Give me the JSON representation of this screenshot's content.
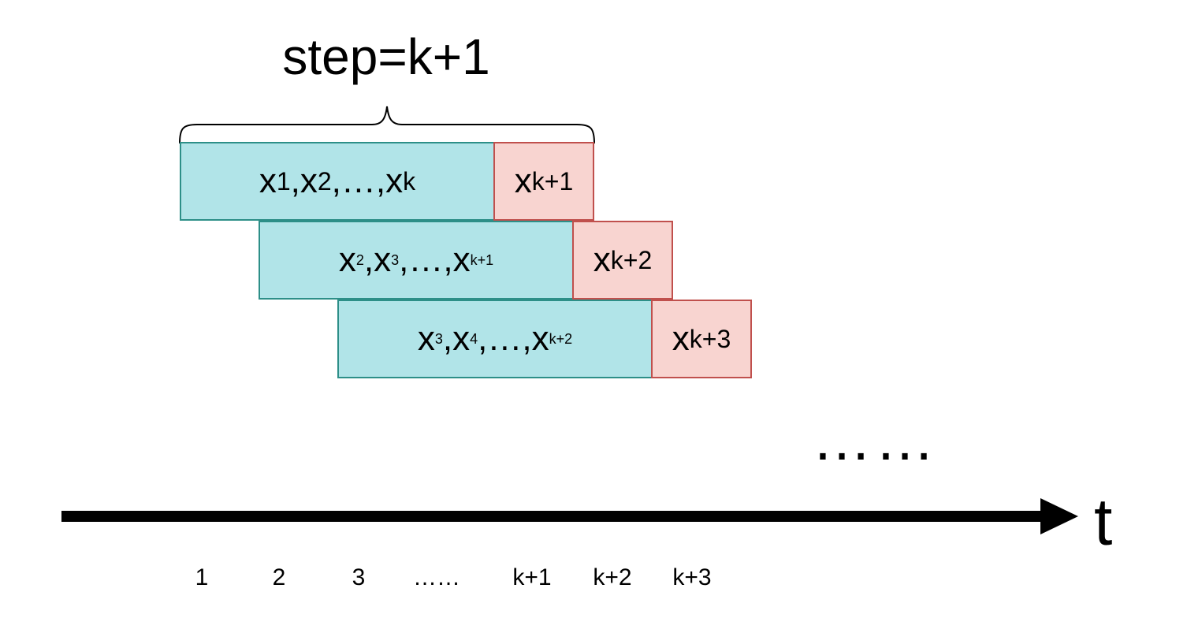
{
  "title": "step=k+1",
  "windows": [
    {
      "inputs": [
        {
          "base": "x",
          "sub": "1",
          "sep": ", "
        },
        {
          "base": "x",
          "sub": "2",
          "sep": ", "
        },
        {
          "ellipsis": "…",
          "sep": ", "
        },
        {
          "base": "x",
          "sub": "k",
          "sep": ""
        }
      ],
      "target": {
        "base": "x",
        "sub": "k+1"
      }
    },
    {
      "inputs": [
        {
          "base": "x",
          "sub": "2",
          "sep": ", "
        },
        {
          "base": "x",
          "sub": "3",
          "sep": ", "
        },
        {
          "ellipsis": "…",
          "sep": ", "
        },
        {
          "base": "x",
          "sub": "k+1",
          "sep": ""
        }
      ],
      "target": {
        "base": "x",
        "sub": "k+2"
      }
    },
    {
      "inputs": [
        {
          "base": "x",
          "sub": "3",
          "sep": ", "
        },
        {
          "base": "x",
          "sub": "4",
          "sep": ", "
        },
        {
          "ellipsis": "…",
          "sep": ", "
        },
        {
          "base": "x",
          "sub": "k+2",
          "sep": ""
        }
      ],
      "target": {
        "base": "x",
        "sub": "k+3"
      }
    }
  ],
  "continuation": "……",
  "axis_label": "t",
  "ticks": [
    "1",
    "2",
    "3",
    "……",
    "k+1",
    "k+2",
    "k+3"
  ],
  "colors": {
    "input_fill": "#b1e4e8",
    "input_border": "#2d8f88",
    "target_fill": "#f8d4d0",
    "target_border": "#c0504d",
    "axis": "#000000"
  }
}
